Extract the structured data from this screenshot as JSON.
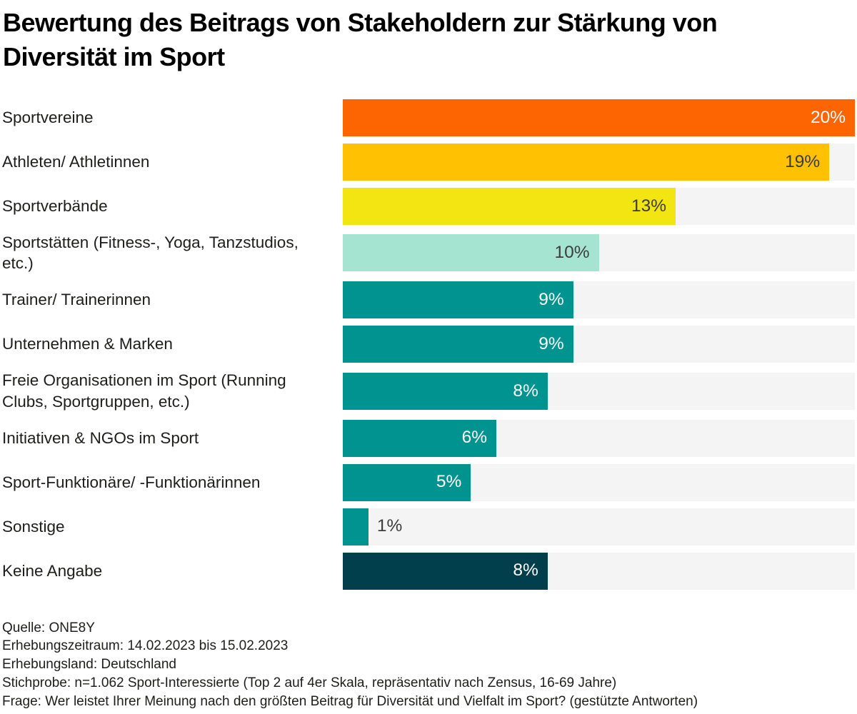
{
  "title": "Bewertung des Beitrags von Stakeholdern zur Stärkung von\nDiversität im Sport",
  "colors": {
    "page_background": "#FFFFFF",
    "track": "#F4F4F4",
    "title_text": "#000000",
    "label_text": "#1D1D1B",
    "dark_value_text": "#3C3C3B",
    "light_value_text": "#FFFFFF",
    "orange": "#FC6502",
    "amber": "#FFC101",
    "yellow": "#F2E512",
    "mint": "#A5E4D1",
    "teal": "#009390",
    "dark_petrol": "#013F4D"
  },
  "chart_data": {
    "type": "bar",
    "orientation": "horizontal",
    "title": "Bewertung des Beitrags von Stakeholdern zur Stärkung von Diversität im Sport",
    "unit": "%",
    "xlim": [
      0,
      20
    ],
    "grid": false,
    "legend": false,
    "xlabel": "",
    "ylabel": "",
    "categories": [
      "Sportvereine",
      "Athleten/ Athletinnen",
      "Sportverbände",
      "Sportstätten (Fitness-, Yoga, Tanzstudios, etc.)",
      "Trainer/ Trainerinnen",
      "Unternehmen & Marken",
      "Freie Organisationen im Sport (Running Clubs, Sportgruppen, etc.)",
      "Initiativen & NGOs im Sport",
      "Sport-Funktionäre/ -Funktionärinnen",
      "Sonstige",
      "Keine Angabe"
    ],
    "values": [
      20,
      19,
      13,
      10,
      9,
      9,
      8,
      6,
      5,
      1,
      8
    ],
    "rows": [
      {
        "label": "Sportvereine",
        "value": 20,
        "value_label": "20%",
        "bar_color": "#FC6502",
        "value_color": "#FFFFFF",
        "value_inside": true
      },
      {
        "label": "Athleten/ Athletinnen",
        "value": 19,
        "value_label": "19%",
        "bar_color": "#FFC101",
        "value_color": "#3C3C3B",
        "value_inside": true
      },
      {
        "label": "Sportverbände",
        "value": 13,
        "value_label": "13%",
        "bar_color": "#F2E512",
        "value_color": "#3C3C3B",
        "value_inside": true
      },
      {
        "label": "Sportstätten (Fitness-, Yoga, Tanzstudios,\netc.)",
        "value": 10,
        "value_label": "10%",
        "bar_color": "#A5E4D1",
        "value_color": "#3C3C3B",
        "value_inside": true
      },
      {
        "label": "Trainer/ Trainerinnen",
        "value": 9,
        "value_label": "9%",
        "bar_color": "#009390",
        "value_color": "#FFFFFF",
        "value_inside": true
      },
      {
        "label": "Unternehmen & Marken",
        "value": 9,
        "value_label": "9%",
        "bar_color": "#009390",
        "value_color": "#FFFFFF",
        "value_inside": true
      },
      {
        "label": "Freie Organisationen im Sport (Running\nClubs, Sportgruppen, etc.)",
        "value": 8,
        "value_label": "8%",
        "bar_color": "#009390",
        "value_color": "#FFFFFF",
        "value_inside": true
      },
      {
        "label": "Initiativen & NGOs im Sport",
        "value": 6,
        "value_label": "6%",
        "bar_color": "#009390",
        "value_color": "#FFFFFF",
        "value_inside": true
      },
      {
        "label": "Sport-Funktionäre/ -Funktionärinnen",
        "value": 5,
        "value_label": "5%",
        "bar_color": "#009390",
        "value_color": "#FFFFFF",
        "value_inside": true
      },
      {
        "label": "Sonstige",
        "value": 1,
        "value_label": "1%",
        "bar_color": "#009390",
        "value_color": "#3C3C3B",
        "value_inside": false
      },
      {
        "label": "Keine Angabe",
        "value": 8,
        "value_label": "8%",
        "bar_color": "#013F4D",
        "value_color": "#FFFFFF",
        "value_inside": true
      }
    ]
  },
  "footer": {
    "lines": [
      "Quelle: ONE8Y",
      "Erhebungszeitraum: 14.02.2023 bis 15.02.2023",
      "Erhebungsland: Deutschland",
      "Stichprobe: n=1.062 Sport-Interessierte (Top 2 auf 4er Skala, repräsentativ nach Zensus, 16-69 Jahre)",
      "Frage: Wer leistet Ihrer Meinung nach den größten Beitrag für Diversität und Vielfalt im Sport? (gestützte Antworten)"
    ]
  }
}
